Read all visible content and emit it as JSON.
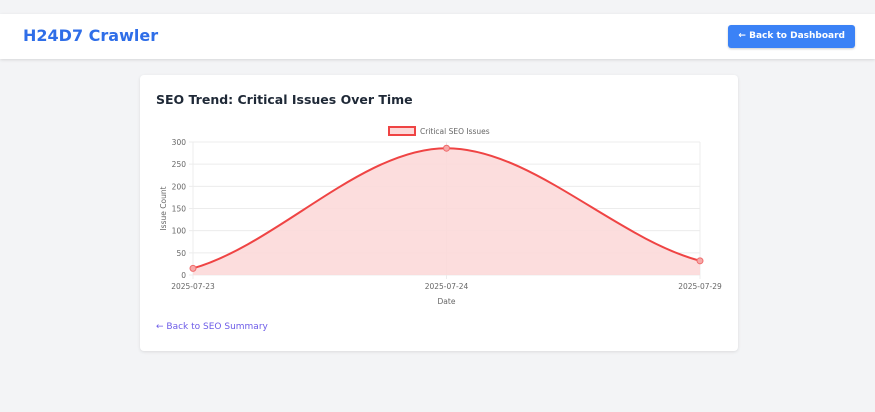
{
  "header": {
    "brand": "H24D7 Crawler",
    "back_button": "← Back to Dashboard"
  },
  "card": {
    "title": "SEO Trend: Critical Issues Over Time",
    "back_link": "← Back to SEO Summary"
  },
  "chart_data": {
    "type": "line",
    "title": "",
    "xlabel": "Date",
    "ylabel": "Issue Count",
    "categories": [
      "2025-07-23",
      "2025-07-24",
      "2025-07-29"
    ],
    "series": [
      {
        "name": "Critical SEO Issues",
        "values": [
          15,
          286,
          32
        ]
      }
    ],
    "ylim": [
      0,
      300
    ],
    "yticks": [
      0,
      50,
      100,
      150,
      200,
      250,
      300
    ],
    "grid": true,
    "legend": "top",
    "fill": true,
    "colors": {
      "line": "#ef4444",
      "fill": "#fcd9d9"
    }
  }
}
